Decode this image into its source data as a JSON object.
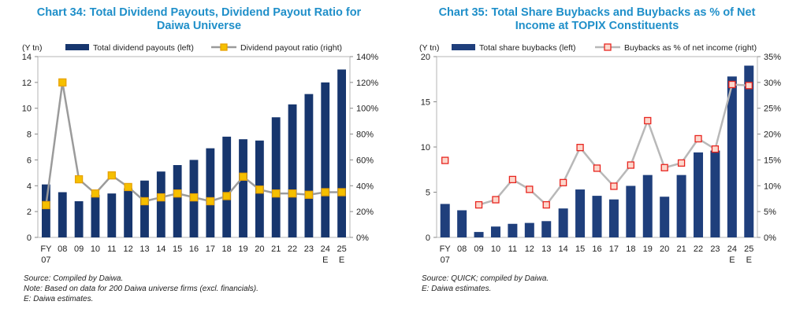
{
  "chart_data": [
    {
      "type": "bar",
      "title_lines": [
        "Chart 34: Total Dividend Payouts, Dividend Payout Ratio for",
        "Daiwa Universe"
      ],
      "left_unit": "(Y tn)",
      "left_ticks": [
        "0",
        "2",
        "4",
        "6",
        "8",
        "10",
        "12",
        "14"
      ],
      "left_ylim": [
        0,
        14
      ],
      "right_ticks": [
        "0%",
        "20%",
        "40%",
        "60%",
        "80%",
        "100%",
        "120%",
        "140%"
      ],
      "right_ylim": [
        0,
        140
      ],
      "categories": [
        {
          "l1": "FY",
          "l2": "07"
        },
        {
          "l1": "08",
          "l2": ""
        },
        {
          "l1": "09",
          "l2": ""
        },
        {
          "l1": "10",
          "l2": ""
        },
        {
          "l1": "11",
          "l2": ""
        },
        {
          "l1": "12",
          "l2": ""
        },
        {
          "l1": "13",
          "l2": ""
        },
        {
          "l1": "14",
          "l2": ""
        },
        {
          "l1": "15",
          "l2": ""
        },
        {
          "l1": "16",
          "l2": ""
        },
        {
          "l1": "17",
          "l2": ""
        },
        {
          "l1": "18",
          "l2": ""
        },
        {
          "l1": "19",
          "l2": ""
        },
        {
          "l1": "20",
          "l2": ""
        },
        {
          "l1": "21",
          "l2": ""
        },
        {
          "l1": "22",
          "l2": ""
        },
        {
          "l1": "23",
          "l2": ""
        },
        {
          "l1": "24",
          "l2": "E"
        },
        {
          "l1": "25",
          "l2": "E"
        }
      ],
      "series": [
        {
          "name": "Total dividend payouts (left)",
          "axis": "left",
          "kind": "bar",
          "color": "#17366e",
          "values": [
            4.1,
            3.5,
            2.8,
            3.3,
            3.4,
            3.8,
            4.4,
            5.1,
            5.6,
            6.0,
            6.9,
            7.8,
            7.6,
            7.5,
            9.3,
            10.3,
            11.1,
            12.0,
            13.0
          ]
        },
        {
          "name": "Dividend payout ratio (right)",
          "axis": "right",
          "kind": "line",
          "line_color": "#9b9b9b",
          "marker": "square",
          "marker_fill": "#f5c000",
          "marker_edge": "#e8a200",
          "values": [
            25,
            120,
            45,
            34,
            48,
            39,
            28,
            31,
            34,
            31,
            28,
            32,
            47,
            37,
            34,
            34,
            33,
            35,
            35
          ]
        }
      ],
      "legend": "top",
      "notes": [
        "Source: Compiled by Daiwa.",
        "Note: Based on data for 200 Daiwa universe firms (excl. financials).",
        "E: Daiwa estimates."
      ]
    },
    {
      "type": "bar",
      "title_lines": [
        "Chart 35: Total Share Buybacks and Buybacks as % of Net",
        "Income at TOPIX Constituents"
      ],
      "left_unit": "(Y tn)",
      "left_ticks": [
        "0",
        "5",
        "10",
        "15",
        "20"
      ],
      "left_ylim": [
        0,
        20
      ],
      "right_ticks": [
        "0%",
        "5%",
        "10%",
        "15%",
        "20%",
        "25%",
        "30%",
        "35%"
      ],
      "right_ylim": [
        0,
        35
      ],
      "categories": [
        {
          "l1": "FY",
          "l2": "07"
        },
        {
          "l1": "08",
          "l2": ""
        },
        {
          "l1": "09",
          "l2": ""
        },
        {
          "l1": "10",
          "l2": ""
        },
        {
          "l1": "11",
          "l2": ""
        },
        {
          "l1": "12",
          "l2": ""
        },
        {
          "l1": "13",
          "l2": ""
        },
        {
          "l1": "14",
          "l2": ""
        },
        {
          "l1": "15",
          "l2": ""
        },
        {
          "l1": "16",
          "l2": ""
        },
        {
          "l1": "17",
          "l2": ""
        },
        {
          "l1": "18",
          "l2": ""
        },
        {
          "l1": "19",
          "l2": ""
        },
        {
          "l1": "20",
          "l2": ""
        },
        {
          "l1": "21",
          "l2": ""
        },
        {
          "l1": "22",
          "l2": ""
        },
        {
          "l1": "23",
          "l2": ""
        },
        {
          "l1": "24",
          "l2": "E"
        },
        {
          "l1": "25",
          "l2": "E"
        }
      ],
      "series": [
        {
          "name": "Total share buybacks (left)",
          "axis": "left",
          "kind": "bar",
          "color": "#1f3f7c",
          "values": [
            3.7,
            3.0,
            0.6,
            1.2,
            1.5,
            1.6,
            1.8,
            3.2,
            5.3,
            4.6,
            4.2,
            5.7,
            6.9,
            4.5,
            6.9,
            9.4,
            9.6,
            17.8,
            19.0
          ]
        },
        {
          "name": "Buybacks as % of net income (right)",
          "axis": "right",
          "kind": "line",
          "line_color": "#b8b8b8",
          "marker": "square",
          "marker_fill": "#fcd7cc",
          "marker_edge": "#e8251f",
          "values": [
            14.9,
            null,
            6.3,
            7.3,
            11.2,
            9.3,
            6.3,
            10.6,
            17.4,
            13.4,
            9.9,
            14.0,
            22.6,
            13.5,
            14.4,
            19.1,
            17.1,
            29.6,
            29.4
          ]
        }
      ],
      "legend": "top",
      "notes": [
        "Source: QUICK; compiled by Daiwa.",
        "E: Daiwa estimates."
      ]
    }
  ]
}
